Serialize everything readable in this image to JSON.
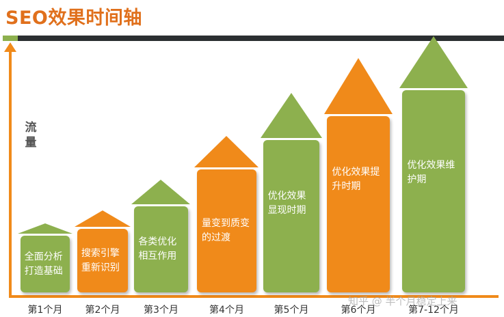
{
  "title": "SEO效果时间轴",
  "y_axis_label": "流量",
  "colors": {
    "green": "#8db04e",
    "orange": "#f08a1a",
    "dark": "#2b2f31",
    "title": "#e0701c"
  },
  "stages": [
    {
      "label": "全面分析打造基础",
      "month": "第1个月",
      "color": "green"
    },
    {
      "label": "搜索引擎重新识别",
      "month": "第2个月",
      "color": "orange"
    },
    {
      "label": "各类优化相互作用",
      "month": "第3个月",
      "color": "green"
    },
    {
      "label": "量变到质变的过渡",
      "month": "第4个月",
      "color": "orange"
    },
    {
      "label": "优化效果显现时期",
      "month": "第5个月",
      "color": "green"
    },
    {
      "label": "优化效果提升时期",
      "month": "第6个月",
      "color": "orange"
    },
    {
      "label": "优化效果维护期",
      "month": "第7-12个月",
      "color": "green"
    }
  ],
  "watermark": "知乎 @ 半个月稳定上来"
}
